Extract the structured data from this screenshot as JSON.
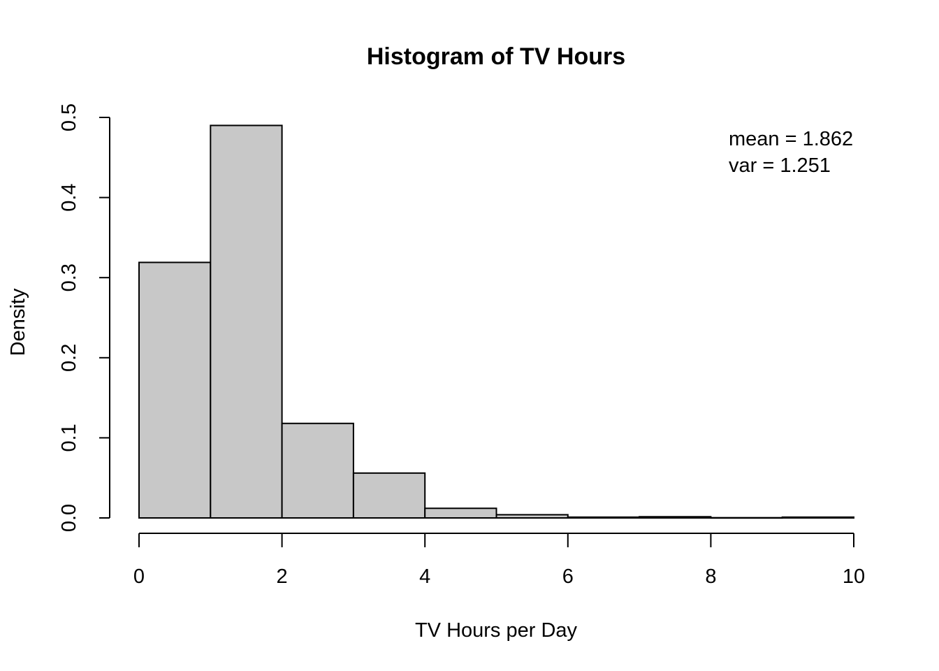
{
  "chart_data": {
    "type": "bar",
    "title": "Histogram of TV Hours",
    "xlabel": "TV Hours per Day",
    "ylabel": "Density",
    "xlim": [
      0,
      10
    ],
    "ylim": [
      0,
      0.5
    ],
    "x_ticks": [
      "0",
      "2",
      "4",
      "6",
      "8",
      "10"
    ],
    "y_ticks": [
      "0.0",
      "0.1",
      "0.2",
      "0.3",
      "0.4",
      "0.5"
    ],
    "bins": [
      {
        "start": 0,
        "end": 1,
        "density": 0.319
      },
      {
        "start": 1,
        "end": 2,
        "density": 0.49
      },
      {
        "start": 2,
        "end": 3,
        "density": 0.118
      },
      {
        "start": 3,
        "end": 4,
        "density": 0.056
      },
      {
        "start": 4,
        "end": 5,
        "density": 0.012
      },
      {
        "start": 5,
        "end": 6,
        "density": 0.004
      },
      {
        "start": 6,
        "end": 7,
        "density": 0.001
      },
      {
        "start": 7,
        "end": 8,
        "density": 0.0015
      },
      {
        "start": 8,
        "end": 9,
        "density": 0.0003
      },
      {
        "start": 9,
        "end": 10,
        "density": 0.001
      }
    ],
    "annotations": [
      "mean =  1.862",
      "var =  1.251"
    ],
    "grid": false,
    "legend": "none",
    "bar_color": "#c8c8c8"
  }
}
